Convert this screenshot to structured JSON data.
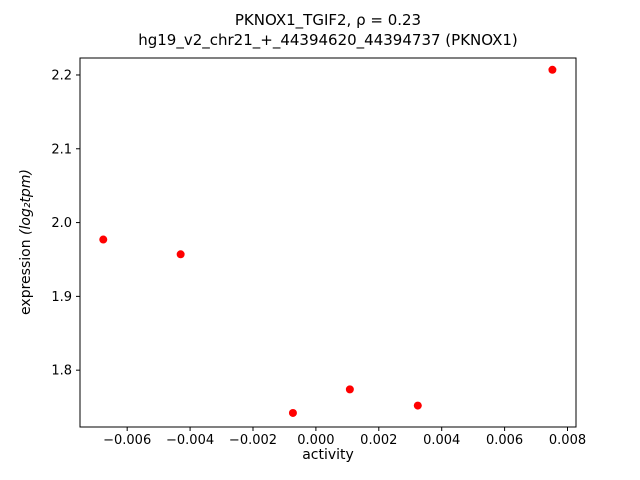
{
  "chart_data": {
    "type": "scatter",
    "title_line1": "PKNOX1_TGIF2, ρ = 0.23",
    "title_line2": "hg19_v2_chr21_+_44394620_44394737 (PKNOX1)",
    "xlabel": "activity",
    "ylabel_text": "expression ",
    "ylabel_math": "(log₂tpm)",
    "xlim": [
      -0.0075,
      0.00827
    ],
    "ylim": [
      1.723,
      2.223
    ],
    "xticks": [
      {
        "v": -0.006,
        "label": "−0.006"
      },
      {
        "v": -0.004,
        "label": "−0.004"
      },
      {
        "v": -0.002,
        "label": "−0.002"
      },
      {
        "v": 0.0,
        "label": "0.000"
      },
      {
        "v": 0.002,
        "label": "0.002"
      },
      {
        "v": 0.004,
        "label": "0.004"
      },
      {
        "v": 0.006,
        "label": "0.006"
      },
      {
        "v": 0.008,
        "label": "0.008"
      }
    ],
    "yticks": [
      {
        "v": 1.8,
        "label": "1.8"
      },
      {
        "v": 1.9,
        "label": "1.9"
      },
      {
        "v": 2.0,
        "label": "2.0"
      },
      {
        "v": 2.1,
        "label": "2.1"
      },
      {
        "v": 2.2,
        "label": "2.2"
      }
    ],
    "marker_color": "#ff0000",
    "marker_radius": 4,
    "axis_color": "#000000",
    "points": [
      {
        "x": -0.00676,
        "y": 1.977
      },
      {
        "x": -0.0043,
        "y": 1.957
      },
      {
        "x": -0.00073,
        "y": 1.742
      },
      {
        "x": 0.00108,
        "y": 1.774
      },
      {
        "x": 0.00324,
        "y": 1.752
      },
      {
        "x": 0.00752,
        "y": 2.207
      }
    ]
  }
}
